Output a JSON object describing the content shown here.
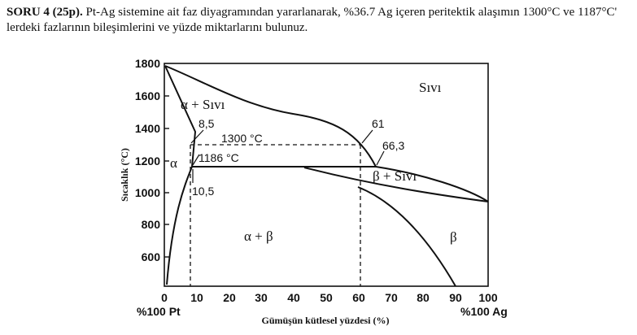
{
  "question": {
    "label": "SORU 4 (25p).",
    "text": "Pt-Ag sistemine ait faz diyagramından yararlanarak, %36.7 Ag içeren peritektik alaşımın 1300°C ve 1187°C' lerdeki fazlarının bileşimlerini ve yüzde miktarlarını bulunuz."
  },
  "diagram": {
    "y_axis_label": "Sıcaklık (°C)",
    "x_axis_label": "Gümüşün kütlesel yüzdesi (%)",
    "x_left_label": "%100 Pt",
    "x_right_label": "%100 Ag",
    "y_ticks": [
      "1800",
      "1600",
      "1400",
      "1200",
      "1000",
      "800",
      "600"
    ],
    "x_ticks": [
      "0",
      "10",
      "20",
      "30",
      "40",
      "50",
      "60",
      "70",
      "80",
      "90",
      "100"
    ],
    "phases": {
      "liquid": "Sıvı",
      "alpha_liquid": "α + Sıvı",
      "alpha": "α",
      "alpha_beta": "α + β",
      "beta_liquid": "β + Sıvı",
      "beta": "β"
    },
    "annotations": {
      "c_8_5": "8,5",
      "t_1300": "1300 °C",
      "c_61": "61",
      "c_66_3": "66,3",
      "t_1186": "1186 °C",
      "c_10_5": "10,5"
    }
  }
}
